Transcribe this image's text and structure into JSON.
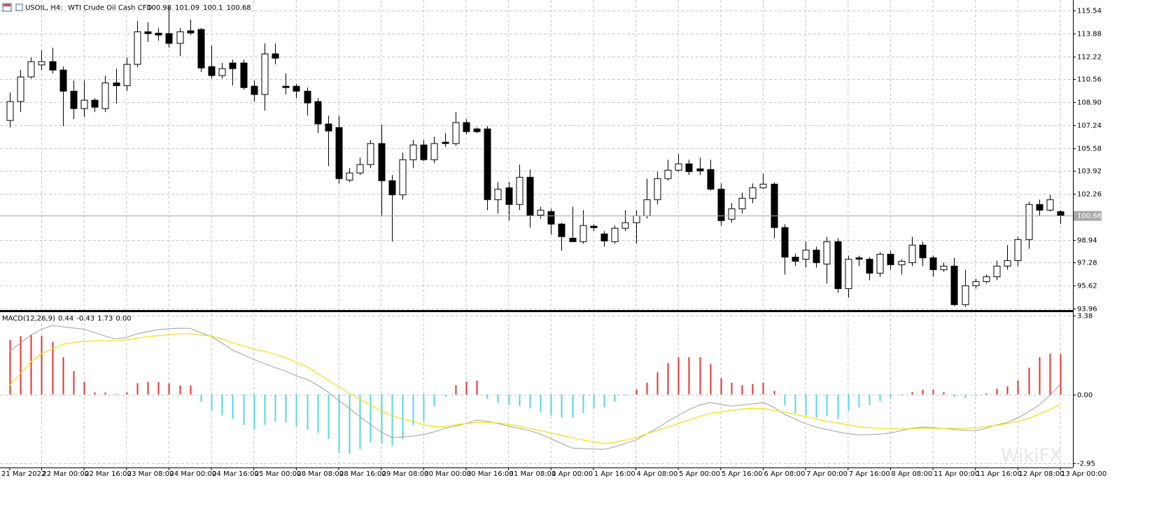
{
  "chart_data": [
    {
      "type": "candlestick",
      "title": "USOIL, H4:",
      "subtitle": "WTI Crude Oil Cash CFD",
      "categories": [
        "21 Mar 2022",
        null,
        null,
        "22 Mar 00:00",
        null,
        null,
        null,
        "22 Mar 16:00",
        null,
        null,
        null,
        "23 Mar 08:00",
        null,
        null,
        null,
        "24 Mar 00:00",
        null,
        null,
        null,
        "24 Mar 16:00",
        null,
        null,
        null,
        "25 Mar 00:00",
        null,
        null,
        null,
        "28 Mar 08:00",
        null,
        null,
        null,
        "28 Mar 16:00",
        null,
        null,
        null,
        "29 Mar 08:00",
        null,
        null,
        null,
        "30 Mar 00:00",
        null,
        null,
        null,
        "30 Mar 16:00",
        null,
        null,
        null,
        "31 Mar 08:00",
        null,
        null,
        null,
        "1 Apr 00:00",
        null,
        null,
        null,
        "1 Apr 16:00",
        null,
        null,
        null,
        "4 Apr 08:00",
        null,
        null,
        null,
        "5 Apr 00:00",
        null,
        null,
        null,
        "5 Apr 16:00",
        null,
        null,
        null,
        "6 Apr 08:00",
        null,
        null,
        null,
        "7 Apr 00:00",
        null,
        null,
        null,
        "7 Apr 16:00",
        null,
        null,
        null,
        "8 Apr 08:00",
        null,
        null,
        null,
        "11 Apr 00:00",
        null,
        null,
        null,
        "11 Apr 16:00",
        null,
        null,
        null,
        "12 Apr 08:00",
        null,
        null,
        null,
        "13 Apr 00:00"
      ],
      "open": [
        107.58,
        108.95,
        110.73,
        111.6,
        111.84,
        111.23,
        109.7,
        108.44,
        109.05,
        108.44,
        110.3,
        110.1,
        111.64,
        114.0,
        113.9,
        113.87,
        113.16,
        114.07,
        114.17,
        111.48,
        110.83,
        111.74,
        111.74,
        110.06,
        109.46,
        112.4,
        110.06,
        110.06,
        109.7,
        108.95,
        107.33,
        107.07,
        103.27,
        103.78,
        104.39,
        105.91,
        103.22,
        102.2,
        104.74,
        105.81,
        104.74,
        106.01,
        105.91,
        107.43,
        106.97,
        106.97,
        101.85,
        102.71,
        101.5,
        103.47,
        100.73,
        100.99,
        100.08,
        99.06,
        98.81,
        99.93,
        99.37,
        98.81,
        99.78,
        100.18,
        100.68,
        101.85,
        103.37,
        103.98,
        104.44,
        104.08,
        104.03,
        102.61,
        100.43,
        101.19,
        101.95,
        102.71,
        102.97,
        99.83,
        97.69,
        97.54,
        98.2,
        97.19,
        98.81,
        95.41,
        97.64,
        97.54,
        96.53,
        97.9,
        97.14,
        97.29,
        98.56,
        97.64,
        96.78,
        97.04,
        94.25,
        95.62,
        95.92,
        96.27,
        97.04,
        97.44,
        98.96,
        101.5,
        101.09,
        100.98
      ],
      "high": [
        109.61,
        111.23,
        112.14,
        112.65,
        112.85,
        111.48,
        110.47,
        110.47,
        109.2,
        110.82,
        111.33,
        112.14,
        114.78,
        114.68,
        114.27,
        115.79,
        114.27,
        114.88,
        114.27,
        113.0,
        111.74,
        111.99,
        111.99,
        110.47,
        113.16,
        113.16,
        110.98,
        110.22,
        109.96,
        109.2,
        107.93,
        107.93,
        104.13,
        104.89,
        106.16,
        107.28,
        103.63,
        105.25,
        106.16,
        106.16,
        106.41,
        106.67,
        108.19,
        107.68,
        107.07,
        107.17,
        103.12,
        103.12,
        104.39,
        104.03,
        101.34,
        101.19,
        100.18,
        101.34,
        101.09,
        100.08,
        99.57,
        99.97,
        101.09,
        101.09,
        103.37,
        103.88,
        104.74,
        105.15,
        104.74,
        104.89,
        104.74,
        103.02,
        101.6,
        102.36,
        103.02,
        103.73,
        103.12,
        100.08,
        97.95,
        98.81,
        98.45,
        99.16,
        99.06,
        97.79,
        97.79,
        97.69,
        98.05,
        98.15,
        97.54,
        99.16,
        98.81,
        97.79,
        97.29,
        97.64,
        96.78,
        96.12,
        96.43,
        97.44,
        98.56,
        99.16,
        101.7,
        101.85,
        102.2,
        101.09
      ],
      "low": [
        107.07,
        108.19,
        110.62,
        111.23,
        110.98,
        107.17,
        107.68,
        107.83,
        108.19,
        108.19,
        108.8,
        109.71,
        111.43,
        113.26,
        113.36,
        112.85,
        112.24,
        113.77,
        111.08,
        110.62,
        110.62,
        110.11,
        109.81,
        108.95,
        108.29,
        111.64,
        109.46,
        109.2,
        107.93,
        106.67,
        104.28,
        103.02,
        103.12,
        103.63,
        104.13,
        100.68,
        98.81,
        101.85,
        104.13,
        104.64,
        104.49,
        105.65,
        105.75,
        106.57,
        106.67,
        101.09,
        100.84,
        100.33,
        101.09,
        99.82,
        100.48,
        99.32,
        98.15,
        98.81,
        98.66,
        99.57,
        98.45,
        98.66,
        99.57,
        98.66,
        100.48,
        101.5,
        103.22,
        103.88,
        103.63,
        103.63,
        102.51,
        99.97,
        100.18,
        100.84,
        101.6,
        102.61,
        99.06,
        96.43,
        97.03,
        96.93,
        96.93,
        95.77,
        95.11,
        94.75,
        97.03,
        96.02,
        96.27,
        96.78,
        96.43,
        97.03,
        97.03,
        96.27,
        96.63,
        94.14,
        94.09,
        95.41,
        95.77,
        96.02,
        96.78,
        97.03,
        98.3,
        100.68,
        100.99,
        100.1
      ],
      "close": [
        108.95,
        110.73,
        111.84,
        111.84,
        111.23,
        109.7,
        108.44,
        109.05,
        108.54,
        110.3,
        110.1,
        111.64,
        114.0,
        113.87,
        113.76,
        113.16,
        114.0,
        113.92,
        111.38,
        110.83,
        111.33,
        111.33,
        109.96,
        109.46,
        112.4,
        112.09,
        109.96,
        109.7,
        108.85,
        107.33,
        106.82,
        103.37,
        103.78,
        104.39,
        105.91,
        103.22,
        102.2,
        104.74,
        105.81,
        104.74,
        105.91,
        105.91,
        107.43,
        106.77,
        106.77,
        101.85,
        102.61,
        101.5,
        103.47,
        100.73,
        101.09,
        100.08,
        99.17,
        98.81,
        99.98,
        99.82,
        98.86,
        99.78,
        100.18,
        100.68,
        101.85,
        103.37,
        103.98,
        104.44,
        103.88,
        103.93,
        102.61,
        100.33,
        101.19,
        101.95,
        102.71,
        102.97,
        99.83,
        97.69,
        97.39,
        98.2,
        97.29,
        98.81,
        95.41,
        97.54,
        97.54,
        96.53,
        97.9,
        97.14,
        97.39,
        98.56,
        97.64,
        96.78,
        97.04,
        94.25,
        95.62,
        95.92,
        96.27,
        97.04,
        97.44,
        98.96,
        101.5,
        101.09,
        101.85,
        100.68
      ],
      "ylim": [
        93.86,
        116.3
      ],
      "yticks": [
        115.54,
        113.88,
        112.22,
        110.56,
        {
          "value": 108.9,
          "label": "108.90"
        },
        107.24,
        105.58,
        103.92,
        102.26,
        98.94,
        97.28,
        95.62,
        93.96
      ],
      "grid": true,
      "up_color": "#ffffff",
      "down_color": "#000000",
      "price_line_color": "#a8a8a8"
    },
    {
      "type": "macd",
      "title": "MACD(12,26,9)",
      "extra_value_label": "0.00",
      "histogram": {
        "positive_color": "#e8312f",
        "negative_color": "#4fd8e4",
        "values": [
          2.34,
          2.5,
          2.55,
          2.5,
          2.25,
          1.6,
          1.0,
          0.55,
          0.09,
          0.09,
          0.03,
          0.09,
          0.48,
          0.54,
          0.54,
          0.48,
          0.39,
          0.39,
          -0.3,
          -0.7,
          -0.9,
          -1.05,
          -1.3,
          -1.5,
          -1.3,
          -1.15,
          -1.2,
          -1.35,
          -1.5,
          -1.65,
          -1.9,
          -2.5,
          -2.55,
          -2.35,
          -2.05,
          -2.1,
          -2.2,
          -1.9,
          -1.3,
          -1.15,
          -0.5,
          -0.1,
          0.4,
          0.55,
          0.6,
          -0.2,
          -0.35,
          -0.45,
          -0.5,
          -0.6,
          -0.75,
          -0.9,
          -1.0,
          -1.0,
          -0.8,
          -0.6,
          -0.55,
          -0.3,
          -0.05,
          0.2,
          0.5,
          0.95,
          1.35,
          1.6,
          1.6,
          1.6,
          1.3,
          0.7,
          0.5,
          0.4,
          0.45,
          0.5,
          0.15,
          -0.45,
          -0.8,
          -0.9,
          -1.0,
          -0.9,
          -1.05,
          -0.7,
          -0.55,
          -0.45,
          -0.3,
          -0.15,
          -0.05,
          0.1,
          0.2,
          0.2,
          0.1,
          -0.1,
          -0.15,
          -0.05,
          0.05,
          0.25,
          0.35,
          0.6,
          1.15,
          1.6,
          1.75,
          1.73
        ]
      },
      "macd_line": {
        "color": "#a0a0a0",
        "values": [
          1.85,
          2.2,
          2.55,
          2.8,
          2.95,
          2.9,
          2.85,
          2.8,
          2.65,
          2.5,
          2.38,
          2.45,
          2.6,
          2.7,
          2.78,
          2.82,
          2.84,
          2.83,
          2.65,
          2.48,
          2.2,
          1.9,
          1.7,
          1.5,
          1.33,
          1.15,
          1.0,
          0.8,
          0.65,
          0.4,
          0.1,
          -0.25,
          -0.6,
          -0.95,
          -1.3,
          -1.6,
          -1.85,
          -1.82,
          -1.78,
          -1.72,
          -1.6,
          -1.45,
          -1.35,
          -1.25,
          -1.1,
          -1.15,
          -1.25,
          -1.35,
          -1.45,
          -1.55,
          -1.7,
          -1.9,
          -2.1,
          -2.3,
          -2.32,
          -2.34,
          -2.35,
          -2.25,
          -2.1,
          -1.95,
          -1.7,
          -1.45,
          -1.15,
          -0.9,
          -0.65,
          -0.45,
          -0.35,
          -0.42,
          -0.5,
          -0.45,
          -0.4,
          -0.35,
          -0.55,
          -0.85,
          -1.05,
          -1.25,
          -1.4,
          -1.5,
          -1.6,
          -1.68,
          -1.73,
          -1.72,
          -1.7,
          -1.65,
          -1.55,
          -1.45,
          -1.4,
          -1.42,
          -1.45,
          -1.5,
          -1.53,
          -1.55,
          -1.45,
          -1.3,
          -1.2,
          -1.0,
          -0.75,
          -0.45,
          -0.05,
          0.44
        ]
      },
      "signal_line": {
        "color": "#f2e41c",
        "values": [
          0.4,
          0.9,
          1.4,
          1.75,
          1.95,
          2.15,
          2.22,
          2.28,
          2.3,
          2.3,
          2.3,
          2.35,
          2.42,
          2.48,
          2.52,
          2.56,
          2.6,
          2.6,
          2.55,
          2.5,
          2.38,
          2.22,
          2.08,
          1.95,
          1.85,
          1.72,
          1.58,
          1.38,
          1.2,
          0.9,
          0.6,
          0.35,
          0.05,
          -0.2,
          -0.45,
          -0.7,
          -0.9,
          -1.05,
          -1.15,
          -1.3,
          -1.38,
          -1.38,
          -1.3,
          -1.25,
          -1.2,
          -1.2,
          -1.22,
          -1.28,
          -1.35,
          -1.45,
          -1.55,
          -1.65,
          -1.75,
          -1.85,
          -1.95,
          -2.03,
          -2.1,
          -2.05,
          -1.95,
          -1.85,
          -1.7,
          -1.55,
          -1.4,
          -1.25,
          -1.1,
          -0.95,
          -0.82,
          -0.75,
          -0.68,
          -0.62,
          -0.6,
          -0.6,
          -0.68,
          -0.75,
          -0.85,
          -0.95,
          -1.05,
          -1.15,
          -1.22,
          -1.3,
          -1.38,
          -1.42,
          -1.45,
          -1.47,
          -1.48,
          -1.47,
          -1.45,
          -1.45,
          -1.45,
          -1.45,
          -1.45,
          -1.43,
          -1.38,
          -1.32,
          -1.25,
          -1.15,
          -1.02,
          -0.85,
          -0.65,
          -0.43
        ]
      },
      "ylim": [
        -3.1,
        3.5
      ],
      "yticks": [
        3.38,
        {
          "value": 0,
          "label": "0.00"
        },
        -2.95
      ],
      "grid": true
    }
  ],
  "watermark": "WikiFX"
}
